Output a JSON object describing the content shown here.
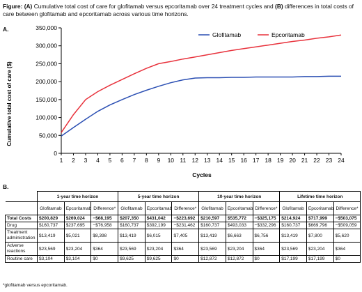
{
  "figure": {
    "caption_prefix": "Figure:",
    "caption_a_marker": "(A)",
    "caption_a_text": "Cumulative total cost of care for glofitamab versus epcoritamab over 24 treatment cycles and",
    "caption_b_marker": "(B)",
    "caption_b_text": "differences in total costs of care between glofitamab and epcoritamab across various time horizons.",
    "panel_a_label": "A.",
    "panel_b_label": "B.",
    "footnote": "*glofitamab versus epcoritamab."
  },
  "colors": {
    "glofitamab": "#2b4fb3",
    "epcoritamab": "#e8323c"
  },
  "chart_data": {
    "type": "line",
    "title": "",
    "xlabel": "Cycles",
    "ylabel": "Cumulative total cost of care ($)",
    "x": [
      1,
      2,
      3,
      4,
      5,
      6,
      7,
      8,
      9,
      10,
      11,
      12,
      13,
      14,
      15,
      16,
      17,
      18,
      19,
      20,
      21,
      22,
      23,
      24
    ],
    "xlim": [
      1,
      24
    ],
    "ylim": [
      0,
      350000
    ],
    "yticks": [
      0,
      50000,
      100000,
      150000,
      200000,
      250000,
      300000,
      350000
    ],
    "ytick_labels": [
      "0",
      "50,000",
      "100,000",
      "150,000",
      "200,000",
      "250,000",
      "300,000",
      "350,000"
    ],
    "grid": false,
    "legend": "top-right",
    "series": [
      {
        "name": "Glofitamab",
        "color_key": "glofitamab",
        "values": [
          48000,
          72000,
          95000,
          117000,
          135000,
          150000,
          164000,
          176000,
          187000,
          197000,
          205000,
          210000,
          211000,
          211000,
          212000,
          212000,
          213000,
          213000,
          213000,
          213000,
          214000,
          214000,
          215000,
          215000
        ]
      },
      {
        "name": "Epcoritamab",
        "color_key": "epcoritamab",
        "values": [
          58000,
          108000,
          150000,
          172000,
          190000,
          206000,
          222000,
          237000,
          250000,
          256000,
          263000,
          269000,
          275000,
          281000,
          287000,
          292000,
          297000,
          302000,
          307000,
          312000,
          316000,
          321000,
          325000,
          330000
        ]
      }
    ]
  },
  "table": {
    "horizons": [
      "1-year time horizon",
      "5-year time horizon",
      "10-year time horizon",
      "Lifetime time horizon"
    ],
    "sub_headers": [
      "Glofitamab",
      "Epcoritamab",
      "Difference*"
    ],
    "rows": [
      {
        "label": "Total Costs",
        "bold": true,
        "cells": [
          "$200,829",
          "$269,024",
          "−$68,195",
          "$207,350",
          "$431,042",
          "−$223,692",
          "$210,597",
          "$535,772",
          "−$325,175",
          "$214,924",
          "$717,999",
          "−$503,075"
        ]
      },
      {
        "label": "Drug",
        "cells": [
          "$160,737",
          "$237,695",
          "−$76,958",
          "$160,737",
          "$392,199",
          "−$231,462",
          "$160,737",
          "$493,033",
          "−$332,296",
          "$160,737",
          "$669,796",
          "−$509,059"
        ]
      },
      {
        "label": "Treatment administration",
        "cells": [
          "$13,419",
          "$5,021",
          "$8,398",
          "$13,419",
          "$6,015",
          "$7,405",
          "$13,419",
          "$6,663",
          "$6,756",
          "$13,419",
          "$7,800",
          "$5,620"
        ]
      },
      {
        "label": "Adverse reactions",
        "cells": [
          "$23,569",
          "$23,204",
          "$364",
          "$23,569",
          "$23,204",
          "$364",
          "$23,569",
          "$23,204",
          "$364",
          "$23,569",
          "$23,204",
          "$364"
        ]
      },
      {
        "label": "Routine care",
        "cells": [
          "$3,104",
          "$3,104",
          "$0",
          "$9,625",
          "$9,625",
          "$0",
          "$12,872",
          "$12,872",
          "$0",
          "$17,199",
          "$17,199",
          "$0"
        ]
      }
    ]
  }
}
